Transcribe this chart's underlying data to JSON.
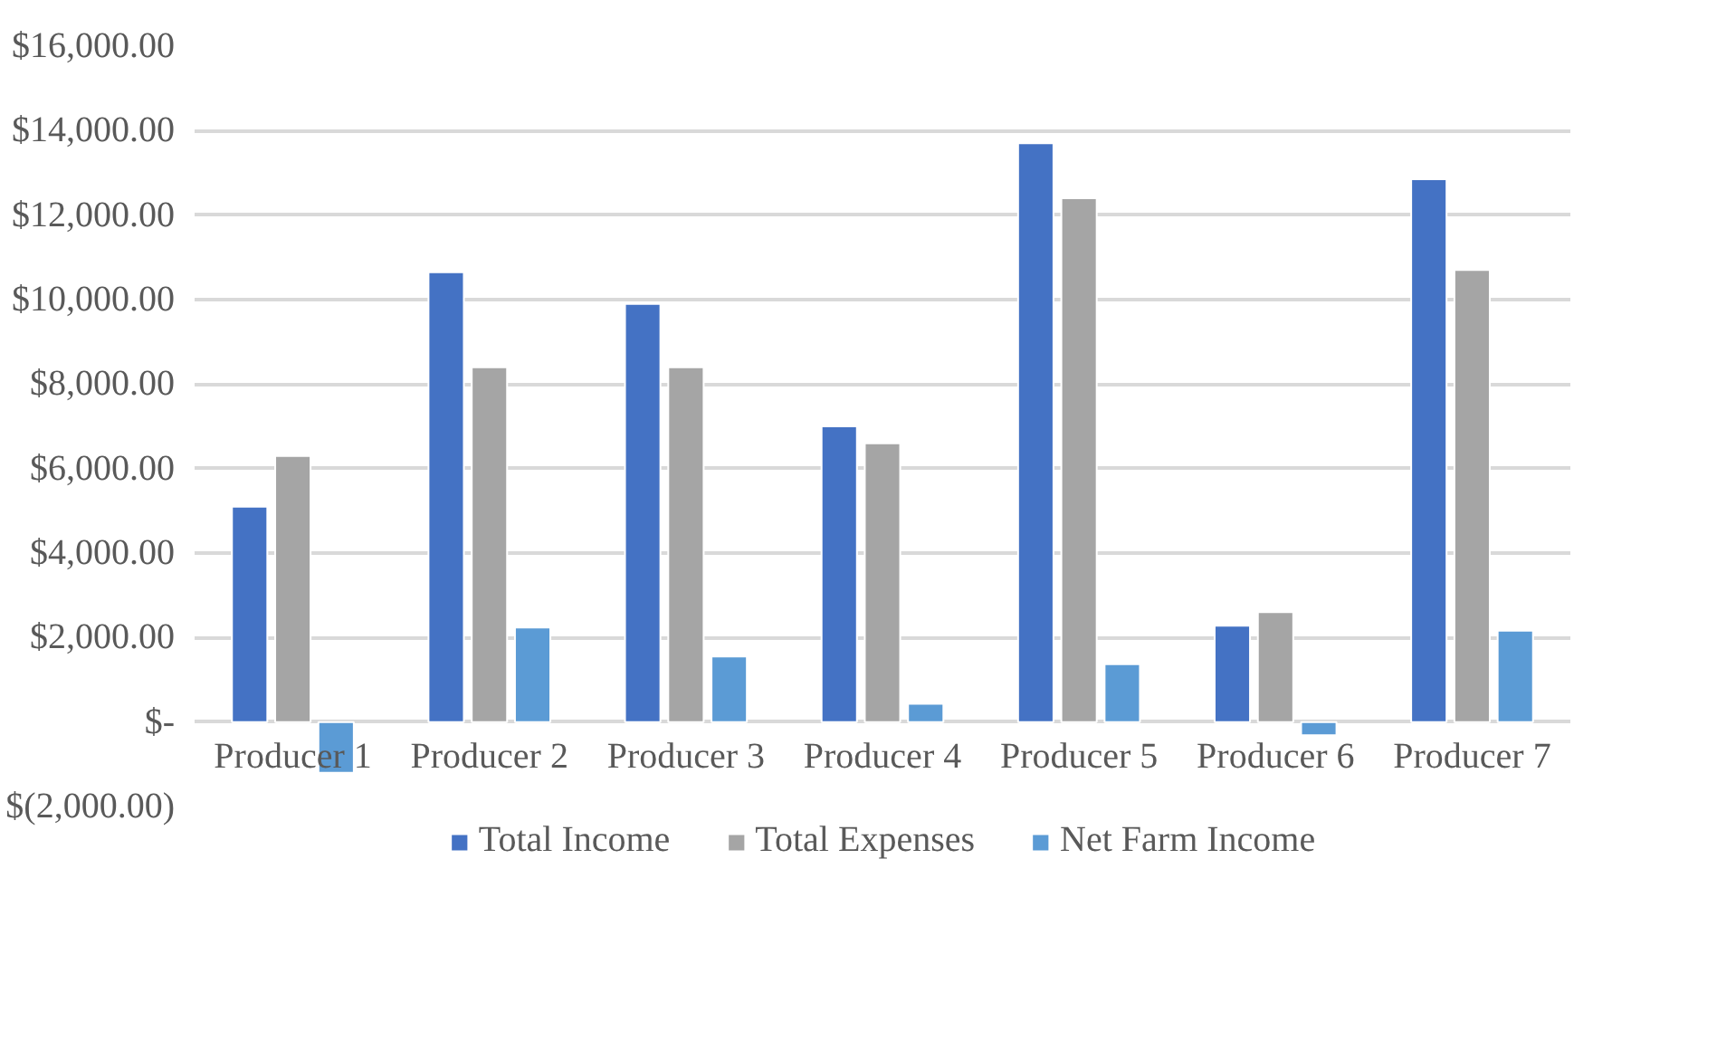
{
  "chart_data": {
    "type": "bar",
    "categories": [
      "Producer 1",
      "Producer 2",
      "Producer 3",
      "Producer 4",
      "Producer 5",
      "Producer 6",
      "Producer 7"
    ],
    "series": [
      {
        "name": "Total Income",
        "color": "#4472c4",
        "values": [
          5100,
          10650,
          9900,
          7000,
          13700,
          2280,
          12850
        ]
      },
      {
        "name": "Total Expenses",
        "color": "#a5a5a5",
        "values": [
          6300,
          8400,
          8400,
          6600,
          12400,
          2600,
          10700
        ]
      },
      {
        "name": "Net Farm Income",
        "color": "#5b9bd5",
        "values": [
          -1200,
          2240,
          1550,
          430,
          1370,
          -310,
          2160
        ]
      }
    ],
    "ylim": [
      -2000,
      16000
    ],
    "yticks": [
      {
        "value": -2000,
        "label": "$(2,000.00)"
      },
      {
        "value": 0,
        "label": "$-"
      },
      {
        "value": 2000,
        "label": "$2,000.00"
      },
      {
        "value": 4000,
        "label": "$4,000.00"
      },
      {
        "value": 6000,
        "label": "$6,000.00"
      },
      {
        "value": 8000,
        "label": "$8,000.00"
      },
      {
        "value": 10000,
        "label": "$10,000.00"
      },
      {
        "value": 12000,
        "label": "$12,000.00"
      },
      {
        "value": 14000,
        "label": "$14,000.00"
      },
      {
        "value": 16000,
        "label": "$16,000.00"
      }
    ],
    "grid": "y",
    "legend": "bottom"
  }
}
